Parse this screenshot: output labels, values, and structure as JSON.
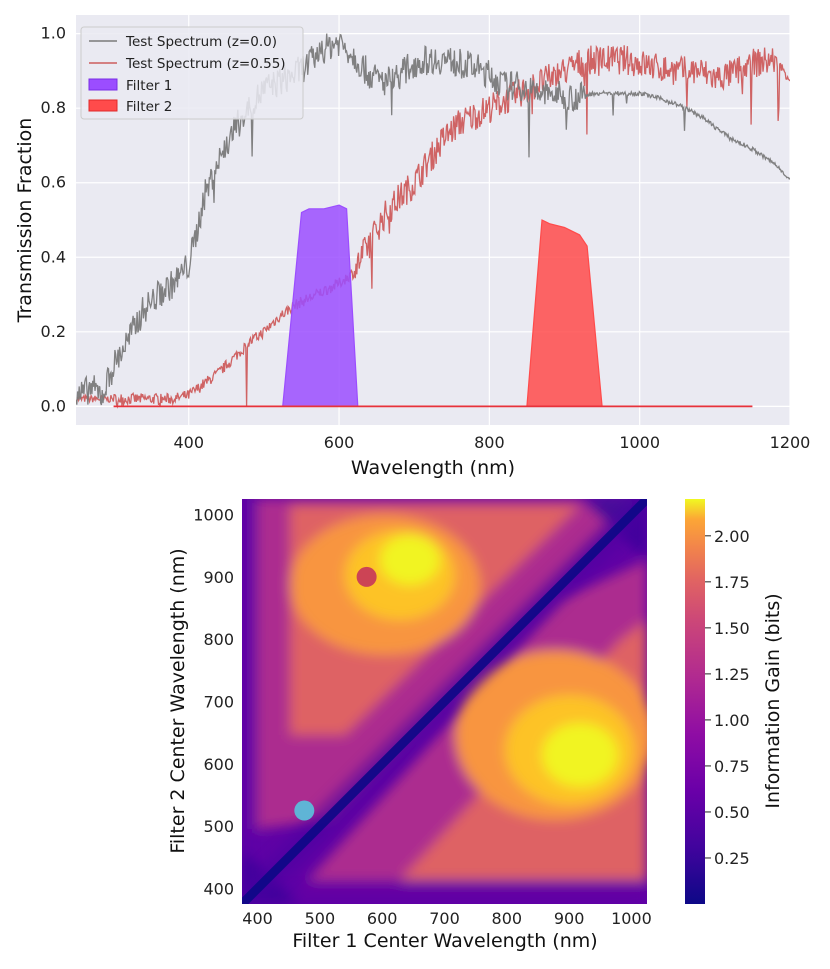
{
  "chart_data": [
    {
      "type": "line",
      "xlabel": "Wavelength (nm)",
      "ylabel": "Transmission Fraction",
      "xlim": [
        250,
        1200
      ],
      "ylim": [
        -0.05,
        1.05
      ],
      "xticks": [
        400,
        600,
        800,
        1000,
        1200
      ],
      "yticks": [
        0.0,
        0.2,
        0.4,
        0.6,
        0.8,
        1.0
      ],
      "legend_position": "top-left",
      "grid": true,
      "series": [
        {
          "name": "Test Spectrum (z=0.0)",
          "kind": "line",
          "color": "#7a7a7a",
          "x": [
            250,
            270,
            285,
            300,
            320,
            340,
            360,
            380,
            400,
            410,
            420,
            440,
            460,
            480,
            500,
            520,
            540,
            560,
            580,
            600,
            620,
            640,
            660,
            680,
            700,
            720,
            740,
            760,
            780,
            800,
            820,
            840,
            860,
            880,
            900,
            920,
            940,
            960,
            980,
            1000,
            1020,
            1050,
            1080,
            1100,
            1120,
            1150,
            1180,
            1200
          ],
          "y": [
            0.02,
            0.05,
            0.03,
            0.11,
            0.18,
            0.26,
            0.3,
            0.33,
            0.38,
            0.46,
            0.56,
            0.66,
            0.74,
            0.8,
            0.85,
            0.87,
            0.89,
            0.92,
            0.96,
            0.98,
            0.94,
            0.89,
            0.87,
            0.89,
            0.92,
            0.93,
            0.93,
            0.92,
            0.91,
            0.89,
            0.86,
            0.86,
            0.84,
            0.84,
            0.83,
            0.83,
            0.84,
            0.84,
            0.84,
            0.84,
            0.83,
            0.81,
            0.78,
            0.75,
            0.72,
            0.69,
            0.65,
            0.61
          ]
        },
        {
          "name": "Test Spectrum (z=0.55)",
          "kind": "line",
          "color": "#cd5c5c",
          "x": [
            250,
            300,
            350,
            380,
            400,
            420,
            440,
            460,
            480,
            500,
            520,
            540,
            560,
            580,
            600,
            620,
            640,
            660,
            680,
            700,
            720,
            740,
            760,
            780,
            800,
            820,
            840,
            860,
            880,
            900,
            920,
            940,
            960,
            980,
            1000,
            1020,
            1050,
            1080,
            1100,
            1120,
            1150,
            1180,
            1200
          ],
          "y": [
            0.02,
            0.02,
            0.02,
            0.02,
            0.03,
            0.06,
            0.09,
            0.13,
            0.17,
            0.2,
            0.24,
            0.27,
            0.29,
            0.31,
            0.33,
            0.36,
            0.44,
            0.51,
            0.56,
            0.6,
            0.66,
            0.72,
            0.76,
            0.78,
            0.8,
            0.82,
            0.84,
            0.86,
            0.88,
            0.9,
            0.92,
            0.93,
            0.93,
            0.93,
            0.92,
            0.91,
            0.9,
            0.9,
            0.88,
            0.89,
            0.92,
            0.93,
            0.88
          ]
        },
        {
          "name": "Filter 1",
          "kind": "fill",
          "color": "#9b4dff",
          "x": [
            525,
            550,
            560,
            580,
            600,
            610,
            625
          ],
          "y": [
            0.0,
            0.52,
            0.53,
            0.53,
            0.54,
            0.53,
            0.0
          ]
        },
        {
          "name": "Filter 2",
          "kind": "fill",
          "color": "#ff4b4b",
          "x": [
            850,
            870,
            880,
            900,
            920,
            930,
            950
          ],
          "y": [
            0.0,
            0.5,
            0.49,
            0.48,
            0.46,
            0.43,
            0.0
          ]
        },
        {
          "name": "",
          "kind": "baseline",
          "color": "#e8323a",
          "x": [
            300,
            1150
          ],
          "y": [
            0.0,
            0.0
          ]
        }
      ]
    },
    {
      "type": "heatmap",
      "xlabel": "Filter 1 Center Wavelength (nm)",
      "ylabel": "Filter 2 Center Wavelength (nm)",
      "xlim": [
        375,
        1025
      ],
      "ylim": [
        375,
        1025
      ],
      "xticks": [
        400,
        500,
        600,
        700,
        800,
        900,
        1000
      ],
      "yticks": [
        400,
        500,
        600,
        700,
        800,
        900,
        1000
      ],
      "colorbar": {
        "label": "Information Gain (bits)",
        "range": [
          0.0,
          2.2
        ],
        "ticks": [
          "0.25",
          "0.50",
          "0.75",
          "1.00",
          "1.25",
          "1.50",
          "1.75",
          "2.00"
        ],
        "colormap": "plasma"
      },
      "markers": [
        {
          "x": 575,
          "y": 900,
          "color": "#cc4455",
          "label": ""
        },
        {
          "x": 475,
          "y": 525,
          "color": "#5fb4d6",
          "label": ""
        }
      ]
    }
  ]
}
